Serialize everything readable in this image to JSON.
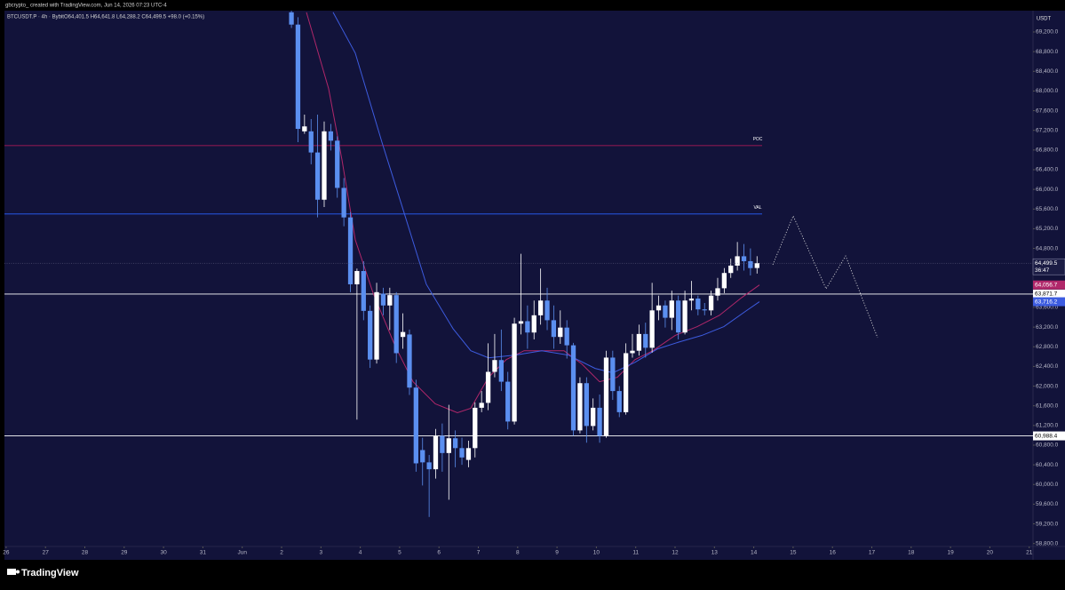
{
  "header": {
    "credit": "gbcrypto_ created with TradingView.com, Jun 14, 2026 07:23 UTC-4",
    "symbol": "BTCUSDT.P · 4h · Bybit",
    "ohlc": "O64,401.5 H64,641.8 L64,288.2 C64,499.5 +98.0 (+0.15%)",
    "currency": "USDT"
  },
  "footer": {
    "brand": "TradingView"
  },
  "chart_data": {
    "type": "candlestick",
    "colors": {
      "up": "#ffffff",
      "down": "#5b8ff0"
    },
    "xlim": [
      -5.156,
      21.097
    ],
    "ylim": [
      58650,
      69850
    ],
    "grid": false,
    "xticks": [
      {
        "value": -5,
        "label": "26"
      },
      {
        "value": -4,
        "label": "27"
      },
      {
        "value": -3,
        "label": "28"
      },
      {
        "value": -2,
        "label": "29"
      },
      {
        "value": -1,
        "label": "30"
      },
      {
        "value": 0,
        "label": "31"
      },
      {
        "value": 1,
        "label": "Jun"
      },
      2,
      3,
      4,
      5,
      6,
      7,
      8,
      9,
      10,
      11,
      12,
      13,
      14,
      15,
      16,
      17,
      18,
      19,
      20,
      21
    ],
    "yticks": [
      {
        "value": 69200,
        "label": "69,200.0"
      },
      {
        "value": 68800,
        "label": "68,800.0"
      },
      {
        "value": 68400,
        "label": "68,400.0"
      },
      {
        "value": 68000,
        "label": "68,000.0"
      },
      {
        "value": 67600,
        "label": "67,600.0"
      },
      {
        "value": 67200,
        "label": "67,200.0"
      },
      {
        "value": 66800,
        "label": "66,800.0"
      },
      {
        "value": 66400,
        "label": "66,400.0"
      },
      {
        "value": 66000,
        "label": "66,000.0"
      },
      {
        "value": 65600,
        "label": "65,600.0"
      },
      {
        "value": 65200,
        "label": "65,200.0"
      },
      {
        "value": 64800,
        "label": "64,800.0"
      },
      {
        "value": 64400,
        "label": "64,400.0"
      },
      {
        "value": 64000,
        "label": "64,000.0"
      },
      {
        "value": 63600,
        "label": "63,600.0"
      },
      {
        "value": 63200,
        "label": "63,200.0"
      },
      {
        "value": 62800,
        "label": "62,800.0"
      },
      {
        "value": 62400,
        "label": "62,400.0"
      },
      {
        "value": 62000,
        "label": "62,000.0"
      },
      {
        "value": 61600,
        "label": "61,600.0"
      },
      {
        "value": 61200,
        "label": "61,200.0"
      },
      {
        "value": 60800,
        "label": "60,800.0"
      },
      {
        "value": 60400,
        "label": "60,400.0"
      },
      {
        "value": 60000,
        "label": "60,000.0"
      },
      {
        "value": 59600,
        "label": "59,600.0"
      },
      {
        "value": 59200,
        "label": "59,200.0"
      },
      {
        "value": 58800,
        "label": "58,800.0"
      }
    ],
    "x": [
      2.167,
      2.333,
      2.5,
      2.667,
      2.833,
      3,
      3.167,
      3.333,
      3.5,
      3.667,
      3.833,
      4,
      4.167,
      4.333,
      4.5,
      4.667,
      4.833,
      5,
      5.167,
      5.333,
      5.5,
      5.667,
      5.833,
      6,
      6.167,
      6.333,
      6.5,
      6.667,
      6.833,
      7,
      7.167,
      7.333,
      7.5,
      7.667,
      7.833,
      8,
      8.167,
      8.333,
      8.5,
      8.667,
      8.833,
      9,
      9.167,
      9.333,
      9.5,
      9.667,
      9.833,
      10,
      10.167,
      10.333,
      10.5,
      10.667,
      10.833,
      11,
      11.167,
      11.333,
      11.5,
      11.667,
      11.833,
      12,
      12.167,
      12.333,
      12.5,
      12.667,
      12.833,
      13,
      13.167,
      13.333,
      13.5,
      13.667,
      13.833,
      14
    ],
    "open": [
      69600,
      69350,
      67180,
      67180,
      66750,
      65790,
      67180,
      66990,
      66030,
      65430,
      64070,
      64340,
      63530,
      62540,
      63880,
      63640,
      63850,
      63000,
      63050,
      61970,
      60700,
      60450,
      60310,
      60990,
      60640,
      60940,
      60740,
      60500,
      60740,
      61560,
      61660,
      62290,
      62530,
      62090,
      61280,
      63270,
      63320,
      63090,
      63440,
      63740,
      63340,
      63000,
      63190,
      62830,
      61100,
      62060,
      61190,
      61560,
      60990,
      62580,
      61900,
      61470,
      62670,
      62720,
      63060,
      62780,
      63540,
      63640,
      63390,
      63740,
      63090,
      63740,
      63780,
      63560,
      63540,
      63840,
      63990,
      64300,
      64450,
      64640,
      64540,
      64401.5
    ],
    "high": [
      69680,
      69500,
      67520,
      67430,
      67520,
      67380,
      67330,
      67080,
      66230,
      65540,
      64390,
      64540,
      63640,
      64100,
      64000,
      64000,
      63910,
      63480,
      63150,
      62130,
      60950,
      60600,
      61130,
      61240,
      61620,
      61100,
      60950,
      60890,
      61670,
      61900,
      62870,
      63060,
      63150,
      62290,
      63390,
      64690,
      63640,
      63740,
      64390,
      64000,
      63640,
      63540,
      63340,
      62880,
      62180,
      62180,
      61750,
      61830,
      62720,
      62720,
      62000,
      62870,
      63060,
      63250,
      63290,
      64100,
      63840,
      63740,
      63940,
      63840,
      63940,
      64140,
      63840,
      63690,
      63940,
      64200,
      64400,
      64590,
      64930,
      64890,
      64800,
      64641.8
    ],
    "low": [
      69280,
      66960,
      67130,
      66510,
      65430,
      65640,
      66790,
      65830,
      65250,
      63910,
      61320,
      63340,
      62370,
      62460,
      63440,
      63140,
      62470,
      62760,
      61820,
      60260,
      59980,
      59340,
      60120,
      60260,
      59690,
      60350,
      60400,
      60350,
      60550,
      61470,
      61510,
      62180,
      61900,
      61120,
      61220,
      63050,
      62760,
      62950,
      63250,
      63140,
      62760,
      62860,
      62560,
      60990,
      61040,
      60850,
      61100,
      60850,
      60950,
      61720,
      61370,
      61420,
      62580,
      62620,
      62580,
      62680,
      63340,
      63190,
      63140,
      62950,
      63050,
      63540,
      63440,
      63440,
      63440,
      63740,
      63890,
      64200,
      64350,
      64350,
      64250,
      64288.2
    ],
    "close": [
      69350,
      67230,
      67280,
      66750,
      65790,
      67180,
      66990,
      66030,
      65430,
      64070,
      64340,
      63530,
      62540,
      63910,
      63640,
      63850,
      62670,
      63100,
      61970,
      60430,
      60450,
      60310,
      60990,
      60640,
      60940,
      60740,
      60550,
      60740,
      61560,
      61660,
      62290,
      62530,
      62090,
      61280,
      63270,
      63320,
      63090,
      63440,
      63740,
      63340,
      63000,
      63190,
      62830,
      61100,
      62060,
      61190,
      61560,
      60990,
      62580,
      61900,
      61470,
      62670,
      62720,
      63060,
      62780,
      63540,
      63640,
      63390,
      63740,
      63090,
      63740,
      63780,
      63560,
      63540,
      63840,
      63990,
      64300,
      64450,
      64640,
      64540,
      64400,
      64499.5
    ],
    "last_label": "64,499.5",
    "countdown": "36:47",
    "lines": [
      {
        "color": "#b0276a",
        "last_label": "64,056.7",
        "x": [
          2.632,
          3.196,
          3.535,
          3.873,
          4.325,
          4.889,
          5.341,
          5.905,
          6.469,
          6.808,
          7.259,
          7.711,
          8.162,
          8.727,
          9.178,
          9.63,
          10.081,
          10.533,
          10.984,
          11.436,
          12.0,
          12.564,
          13.128,
          13.693,
          14.144
        ],
        "values": [
          69600,
          68045,
          66600,
          64975,
          63895,
          62810,
          62090,
          61640,
          61460,
          61550,
          62180,
          62540,
          62720,
          62720,
          62720,
          62450,
          62090,
          62180,
          62540,
          62720,
          63030,
          63210,
          63440,
          63800,
          64056.7
        ]
      },
      {
        "color": "#3d5ce0",
        "last_label": "63,716.2",
        "x": [
          3.309,
          3.873,
          4.55,
          5.115,
          5.679,
          6.356,
          6.808,
          7.259,
          7.937,
          8.614,
          9.291,
          9.968,
          10.42,
          10.984,
          11.548,
          12.113,
          12.677,
          13.241,
          13.805,
          14.144
        ],
        "values": [
          69600,
          68770,
          66960,
          65520,
          64070,
          63170,
          62720,
          62575,
          62630,
          62720,
          62630,
          62360,
          62270,
          62485,
          62755,
          62900,
          63030,
          63210,
          63530,
          63716.2
        ]
      }
    ],
    "levels": [
      {
        "label": "POC",
        "value": 66890,
        "color": "#c2185b"
      },
      {
        "label": "VAL",
        "value": 65500,
        "color": "#2962ff"
      },
      {
        "value": 63871.7,
        "value_label": "63,871.7",
        "color": "#ffffff"
      },
      {
        "value": 60988.4,
        "value_label": "60,988.4",
        "color": "#ffffff"
      }
    ]
  }
}
